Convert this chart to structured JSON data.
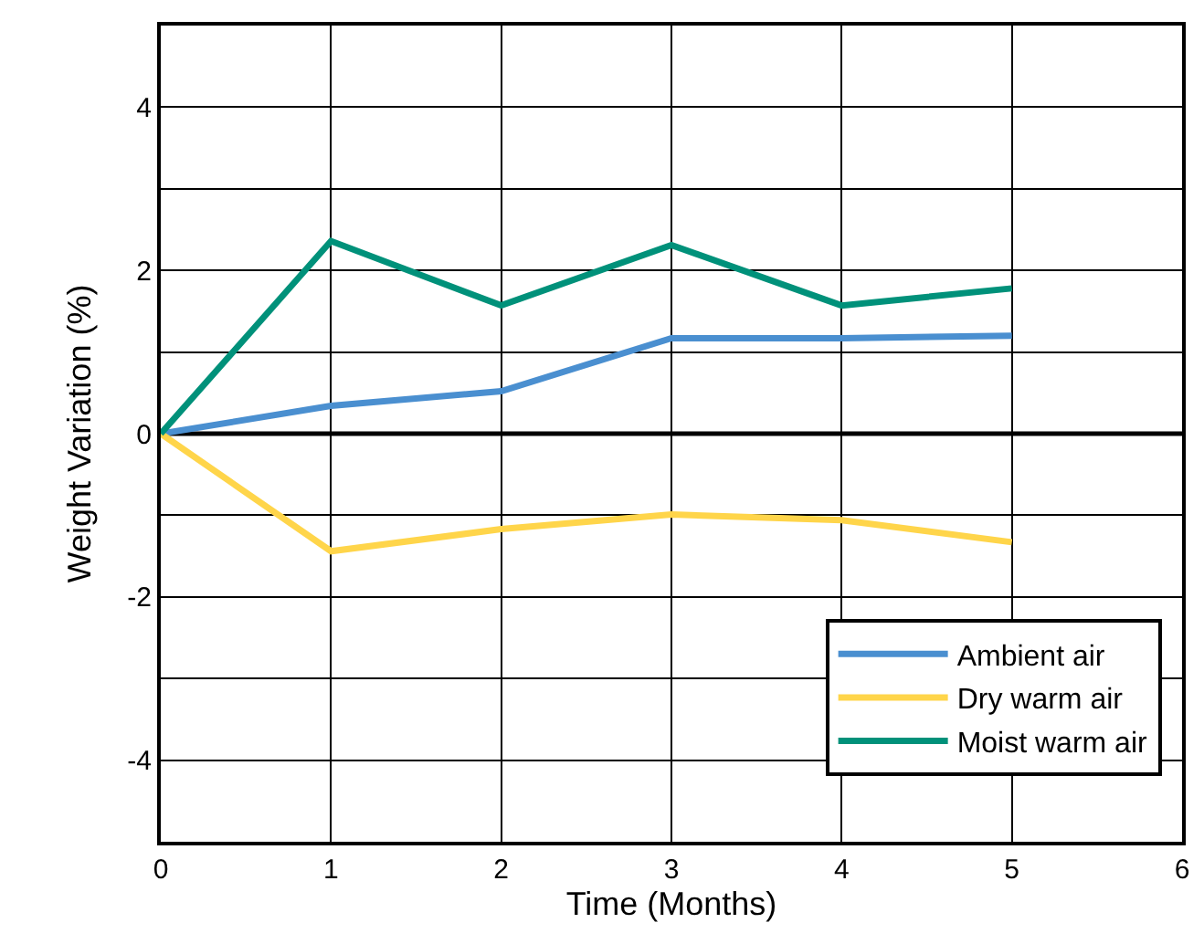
{
  "chart_data": {
    "type": "line",
    "xlabel": "Time (Months)",
    "ylabel": "Weight Variation (%)",
    "x": [
      0,
      1,
      2,
      3,
      4,
      5
    ],
    "series": [
      {
        "name": "Ambient air",
        "color": "#4a8fd0",
        "values": [
          0,
          0.34,
          0.52,
          1.17,
          1.17,
          1.2
        ]
      },
      {
        "name": "Dry warm air",
        "color": "#ffd54a",
        "values": [
          0,
          -1.44,
          -1.17,
          -0.99,
          -1.06,
          -1.33
        ]
      },
      {
        "name": "Moist warm air",
        "color": "#00917a",
        "values": [
          0,
          2.36,
          1.57,
          2.31,
          1.57,
          1.78
        ]
      }
    ],
    "xlim": [
      0,
      6
    ],
    "xticks": [
      0,
      1,
      2,
      3,
      4,
      5,
      6
    ],
    "ylim": [
      -5,
      5
    ],
    "yticks": [
      {
        "value": -5,
        "label": null
      },
      -4,
      {
        "value": -3,
        "label": null
      },
      -2,
      {
        "value": -1,
        "label": null
      },
      0,
      {
        "value": 1,
        "label": null
      },
      2,
      {
        "value": 3,
        "label": null
      },
      4,
      {
        "value": 5,
        "label": null
      }
    ],
    "ref_lines": [
      {
        "axis": "y",
        "value": 0,
        "label": null,
        "color": "#000000"
      }
    ],
    "grid": true,
    "legend": "bottom right",
    "marker": "none",
    "line_style": "solid"
  }
}
